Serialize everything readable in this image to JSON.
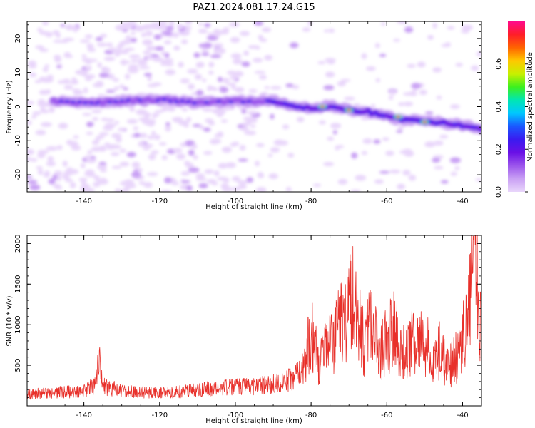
{
  "figure_title": "PAZ1.2024.081.17.24.G15",
  "colors": {
    "snr_line": "#e8302a",
    "colormap": [
      "#ffffff",
      "#e9d6fb",
      "#c9a0f4",
      "#9b55ec",
      "#6a10e6",
      "#3a1bf0",
      "#1a58ff",
      "#00c8ff",
      "#00e6b4",
      "#3cf01e",
      "#c8f000",
      "#ffc800",
      "#ff6400",
      "#ff1e28",
      "#ff0a8c"
    ]
  },
  "chart_data": [
    {
      "type": "heatmap",
      "title": "PAZ1.2024.081.17.24.G15",
      "xlabel": "Height of straight line (km)",
      "ylabel": "Frequency (Hz)",
      "xlim": [
        -155,
        -35
      ],
      "ylim": [
        -25,
        25
      ],
      "x_ticks": [
        -140,
        -120,
        -100,
        -80,
        -60,
        -40
      ],
      "y_ticks": [
        -20,
        -10,
        0,
        10,
        20
      ],
      "colorbar": {
        "label": "Normalized spectral amplitude",
        "range": [
          0,
          0.8
        ],
        "ticks": [
          "0.0",
          "0.2",
          "0.4",
          "0.6"
        ]
      },
      "ridge_frequency": {
        "x": [
          -148,
          -140,
          -130,
          -120,
          -110,
          -100,
          -90,
          -85,
          -80,
          -75,
          -70,
          -65,
          -60,
          -55,
          -50,
          -45,
          -40,
          -35
        ],
        "y": [
          1.8,
          1.0,
          1.6,
          2.0,
          1.2,
          1.5,
          1.6,
          0.5,
          -0.5,
          0.2,
          -1.0,
          -1.5,
          -3.0,
          -4.0,
          -4.3,
          -4.8,
          -5.5,
          -6.8
        ]
      },
      "peak_amplitude_hotspots": {
        "x": [
          -77,
          -70,
          -57,
          -50
        ],
        "y": [
          0.0,
          -1.0,
          -3.0,
          -4.5
        ]
      }
    },
    {
      "type": "line",
      "xlabel": "Height of straight line (km)",
      "ylabel": "SNR (10 * v/v)",
      "xlim": [
        -155,
        -35
      ],
      "ylim": [
        0,
        2100
      ],
      "x_ticks": [
        -140,
        -120,
        -100,
        -80,
        -60,
        -40
      ],
      "y_ticks": [
        500,
        1000,
        1500,
        2000
      ],
      "series": [
        {
          "x": [
            -155,
            -150,
            -145,
            -140,
            -137,
            -136,
            -135,
            -130,
            -125,
            -120,
            -115,
            -110,
            -105,
            -100,
            -95,
            -90,
            -85,
            -82,
            -80,
            -78,
            -75,
            -72,
            -70,
            -69,
            -68,
            -66,
            -64,
            -62,
            -60,
            -58,
            -56,
            -54,
            -52,
            -50,
            -48,
            -46,
            -44,
            -42,
            -40,
            -38,
            -37,
            -36,
            -35.5,
            -35
          ],
          "y": [
            140,
            160,
            170,
            180,
            260,
            610,
            240,
            190,
            170,
            160,
            170,
            200,
            220,
            230,
            240,
            270,
            330,
            460,
            900,
            520,
            750,
            980,
            1300,
            1400,
            1100,
            800,
            1000,
            650,
            800,
            950,
            600,
            800,
            700,
            820,
            560,
            720,
            460,
            560,
            800,
            1500,
            2100,
            1300,
            600,
            1800
          ]
        }
      ]
    }
  ]
}
